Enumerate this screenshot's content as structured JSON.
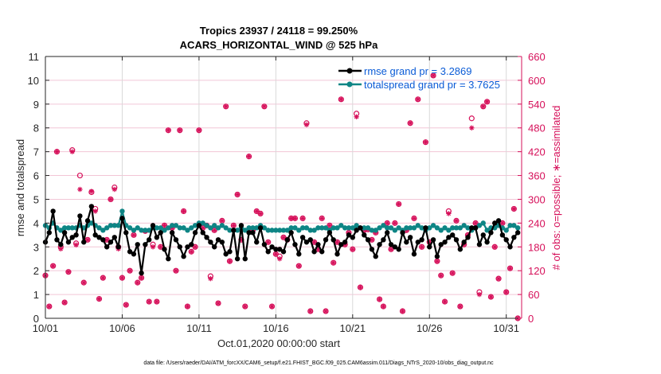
{
  "chart_data": {
    "type": "line",
    "title": "Tropics 23937 / 24118 = 99.250%",
    "subtitle": "ACARS_HORIZONTAL_WIND @ 525 hPa",
    "xlabel": "Oct.01,2020 00:00:00 start",
    "ylabel": "rmse and totalspread",
    "y2label": "# of obs: o=possible; ∗=assimilated",
    "xlim_days": [
      0,
      31
    ],
    "ylim": [
      0,
      11
    ],
    "y2lim": [
      0,
      660
    ],
    "x_ticks": [
      {
        "day": 0,
        "label": "10/01"
      },
      {
        "day": 5,
        "label": "10/06"
      },
      {
        "day": 10,
        "label": "10/11"
      },
      {
        "day": 15,
        "label": "10/16"
      },
      {
        "day": 20,
        "label": "10/21"
      },
      {
        "day": 25,
        "label": "10/26"
      },
      {
        "day": 30,
        "label": "10/31"
      }
    ],
    "y_ticks": [
      0,
      1,
      2,
      3,
      4,
      5,
      6,
      7,
      8,
      9,
      10,
      11
    ],
    "y2_ticks": [
      0,
      60,
      120,
      180,
      240,
      300,
      360,
      420,
      480,
      540,
      600,
      660
    ],
    "grid": "x-vertical and y2-horizontal",
    "legend_position": "top-right",
    "legend": [
      {
        "name": "rmse grand pr = 3.2869",
        "color": "#000000"
      },
      {
        "name": "totalspread grand pr = 3.7625",
        "color": "#0e8585"
      }
    ],
    "time_step_days": 0.25,
    "series": [
      {
        "name": "rmse",
        "color": "#000000",
        "values": [
          3.2,
          3.6,
          4.5,
          3.3,
          3.1,
          3.6,
          3.2,
          3.4,
          3.5,
          4.3,
          3.2,
          4.1,
          4.7,
          3.5,
          3.4,
          3.3,
          3.0,
          3.2,
          3.4,
          3.0,
          4.2,
          3.6,
          2.8,
          2.7,
          3.1,
          1.9,
          3.1,
          3.3,
          3.9,
          3.4,
          3.6,
          2.9,
          2.5,
          3.6,
          3.3,
          3.0,
          2.6,
          3.0,
          3.1,
          3.6,
          3.9,
          3.6,
          3.4,
          3.2,
          3.0,
          3.3,
          3.2,
          2.7,
          2.8,
          3.7,
          2.5,
          3.9,
          2.5,
          3.6,
          3.6,
          3.2,
          3.8,
          3.1,
          2.8,
          3.0,
          2.9,
          2.9,
          2.8,
          3.3,
          3.6,
          3.1,
          2.7,
          3.4,
          3.2,
          3.3,
          2.8,
          3.1,
          2.8,
          3.3,
          3.6,
          3.3,
          2.7,
          3.1,
          3.2,
          3.5,
          3.4,
          3.7,
          3.8,
          3.5,
          3.3,
          2.9,
          2.6,
          3.1,
          3.3,
          3.6,
          3.1,
          3.0,
          2.9,
          3.6,
          3.2,
          3.4,
          2.7,
          3.2,
          3.3,
          3.8,
          3.0,
          3.3,
          2.6,
          3.1,
          3.2,
          3.4,
          3.5,
          3.3,
          2.9,
          3.2,
          3.4,
          3.8,
          3.8,
          3.1,
          3.5,
          3.2,
          3.6,
          4.0,
          4.1,
          3.5,
          3.3,
          3.0,
          3.4,
          3.6
        ]
      },
      {
        "name": "totalspread",
        "color": "#0e8585",
        "values": [
          3.9,
          3.8,
          4.0,
          3.8,
          3.7,
          3.8,
          3.8,
          3.8,
          3.8,
          3.9,
          3.8,
          3.9,
          4.0,
          3.9,
          3.8,
          3.7,
          3.8,
          3.9,
          3.9,
          3.9,
          4.5,
          3.9,
          3.8,
          3.7,
          3.8,
          3.7,
          3.7,
          3.7,
          3.8,
          3.8,
          3.8,
          3.7,
          3.8,
          3.9,
          3.9,
          3.8,
          3.8,
          3.7,
          3.8,
          3.9,
          4.0,
          4.0,
          3.9,
          3.8,
          3.9,
          3.8,
          3.9,
          3.8,
          3.7,
          3.7,
          3.7,
          3.8,
          3.7,
          3.8,
          3.8,
          3.8,
          3.9,
          3.8,
          3.7,
          3.7,
          3.7,
          3.7,
          3.7,
          3.7,
          3.8,
          3.8,
          3.7,
          3.8,
          3.8,
          3.7,
          3.7,
          3.8,
          3.8,
          3.8,
          3.7,
          3.8,
          3.8,
          3.9,
          3.8,
          3.8,
          3.8,
          3.9,
          3.8,
          3.8,
          3.8,
          3.7,
          3.7,
          3.8,
          3.9,
          3.8,
          3.8,
          3.7,
          3.8,
          3.7,
          3.8,
          3.8,
          3.8,
          3.9,
          3.8,
          3.7,
          3.8,
          3.9,
          3.8,
          3.7,
          3.8,
          3.7,
          3.8,
          3.8,
          3.8,
          3.9,
          3.8,
          3.7,
          3.8,
          3.9,
          4.0,
          3.7,
          3.8,
          3.8,
          3.9,
          3.8,
          3.7,
          3.9,
          3.9,
          3.8
        ]
      }
    ],
    "obs_counts": {
      "color": "#d6105a",
      "note": "possible (o) and assimilated (*) counts per time step, right axis",
      "possible": [
        108,
        30,
        132,
        420,
        180,
        40,
        117,
        424,
        189,
        360,
        90,
        198,
        318,
        276,
        49,
        102,
        198,
        300,
        330,
        180,
        102,
        34,
        120,
        210,
        90,
        102,
        220,
        42,
        186,
        42,
        180,
        234,
        474,
        228,
        120,
        474,
        270,
        30,
        168,
        180,
        474,
        228,
        234,
        106,
        222,
        38,
        246,
        534,
        144,
        234,
        312,
        198,
        30,
        408,
        222,
        270,
        264,
        534,
        192,
        30,
        162,
        156,
        204,
        198,
        252,
        252,
        132,
        252,
        492,
        18,
        192,
        174,
        252,
        18,
        234,
        140,
        192,
        552,
        186,
        216,
        174,
        516,
        78,
        222,
        224,
        198,
        216,
        48,
        30,
        240,
        174,
        240,
        288,
        18,
        222,
        492,
        252,
        552,
        180,
        444,
        192,
        612,
        144,
        108,
        42,
        270,
        114,
        246,
        30,
        186,
        210,
        504,
        240,
        66,
        534,
        546,
        54,
        180,
        100,
        240,
        66,
        126,
        276,
        0
      ],
      "assimilated": [
        108,
        30,
        132,
        420,
        175,
        40,
        117,
        420,
        185,
        325,
        90,
        198,
        320,
        270,
        49,
        102,
        198,
        300,
        325,
        175,
        102,
        34,
        120,
        210,
        90,
        102,
        220,
        42,
        180,
        42,
        180,
        234,
        474,
        228,
        120,
        474,
        270,
        30,
        168,
        180,
        474,
        228,
        234,
        100,
        222,
        38,
        246,
        534,
        144,
        234,
        312,
        198,
        30,
        408,
        222,
        270,
        264,
        534,
        192,
        30,
        162,
        150,
        204,
        198,
        252,
        252,
        132,
        252,
        488,
        18,
        192,
        174,
        252,
        18,
        234,
        140,
        192,
        552,
        186,
        216,
        174,
        508,
        78,
        222,
        224,
        198,
        216,
        48,
        30,
        240,
        174,
        240,
        288,
        18,
        222,
        492,
        252,
        552,
        180,
        444,
        192,
        612,
        144,
        108,
        42,
        264,
        114,
        246,
        30,
        186,
        210,
        480,
        240,
        60,
        534,
        546,
        54,
        180,
        100,
        240,
        66,
        126,
        276,
        0
      ]
    },
    "footer": "data file: /Users/raeder/DAI/ATM_forcXX/CAM6_setup/f.e21.FHIST_BGC.f09_025.CAM6assim.011/Diags_NTrS_2020-10/obs_diag_output.nc"
  }
}
